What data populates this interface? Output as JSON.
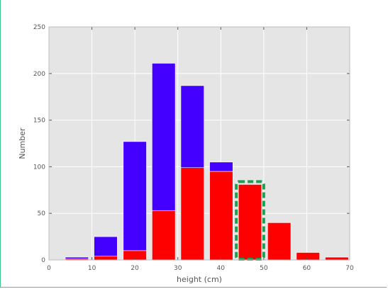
{
  "chart_data": {
    "type": "bar",
    "stacked": true,
    "title": "",
    "xlabel": "height (cm)",
    "ylabel": "Number",
    "xlim": [
      0,
      70
    ],
    "ylim": [
      0,
      250
    ],
    "xticks": [
      "0",
      "10",
      "20",
      "30",
      "40",
      "50",
      "60",
      "70"
    ],
    "yticks": [
      "0",
      "50",
      "100",
      "150",
      "200",
      "250"
    ],
    "grid": true,
    "bar_width": 5.4,
    "x": [
      6.5,
      13.2,
      20,
      26.7,
      33.4,
      40.1,
      46.8,
      53.6,
      60.3,
      67
    ],
    "series": [
      {
        "values": [
          1,
          4,
          10,
          53,
          99,
          95,
          81,
          40,
          8,
          3
        ],
        "color": "#ff0000"
      },
      {
        "values": [
          2,
          21,
          117,
          158,
          88,
          10,
          0,
          0,
          0,
          0
        ],
        "color": "#4400ff"
      }
    ],
    "highlight": {
      "bar_index": 6,
      "style": "dashed",
      "color": "#1e9e50"
    },
    "background": "#e5e5e5"
  }
}
